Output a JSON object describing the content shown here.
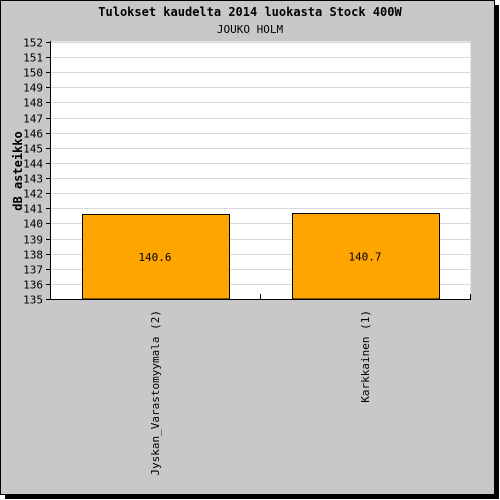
{
  "chart_data": {
    "type": "bar",
    "title": "Tulokset kaudelta 2014 luokasta Stock 400W",
    "subtitle": "JOUKO HOLM",
    "ylabel": "dB asteikko",
    "xlabel": "",
    "categories": [
      "Jyskan_Varastomyymala (2)",
      "Karkkainen (1)"
    ],
    "values": [
      140.6,
      140.7
    ],
    "value_labels": [
      "140.6",
      "140.7"
    ],
    "ylim": [
      135,
      152
    ],
    "yticks": [
      {
        "value": 135,
        "label": "135"
      },
      {
        "value": 136,
        "label": "136"
      },
      {
        "value": 137,
        "label": "137"
      },
      {
        "value": 138,
        "label": "138"
      },
      {
        "value": 139,
        "label": "139"
      },
      {
        "value": 140,
        "label": "140"
      },
      {
        "value": 141,
        "label": "141"
      },
      {
        "value": 142,
        "label": "142"
      },
      {
        "value": 143,
        "label": "143"
      },
      {
        "value": 144,
        "label": "144"
      },
      {
        "value": 145,
        "label": "145"
      },
      {
        "value": 146,
        "label": "146"
      },
      {
        "value": 147,
        "label": "147"
      },
      {
        "value": 148,
        "label": "148"
      },
      {
        "value": 149,
        "label": "149"
      },
      {
        "value": 150,
        "label": "150"
      },
      {
        "value": 151,
        "label": "151"
      },
      {
        "value": 152,
        "label": "152"
      }
    ],
    "grid": true,
    "legend": "none",
    "colors": {
      "bar": "#ffa500",
      "bar_outline": "#000000",
      "background": "#c8c8c8",
      "plot_background": "#ffffff",
      "grid": "#d9d9d9"
    }
  }
}
